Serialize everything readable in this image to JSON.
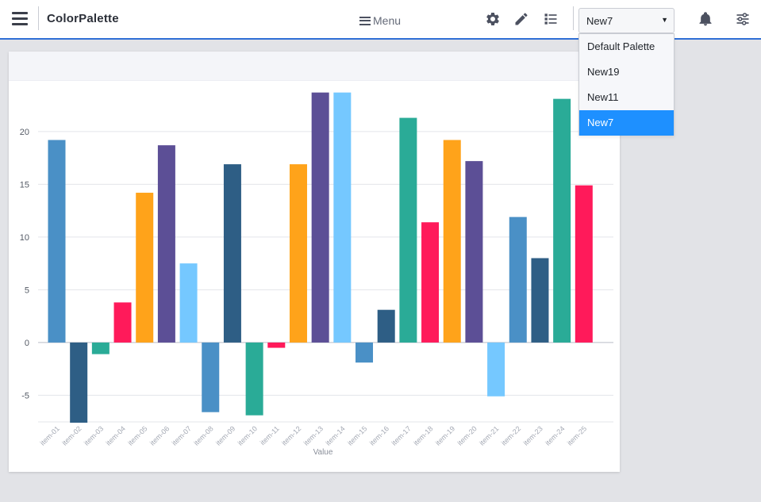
{
  "app": {
    "title": "ColorPalette"
  },
  "toolbar": {
    "menu_label": "Menu",
    "icons": [
      "hamburger-icon",
      "gear-icon",
      "pencil-icon",
      "list-icon",
      "bell-icon",
      "sliders-icon"
    ]
  },
  "palette_select": {
    "value": "New7",
    "options": [
      "Default Palette",
      "New19",
      "New11",
      "New7"
    ]
  },
  "chart_data": {
    "type": "bar",
    "categories": [
      "item-01",
      "item-02",
      "item-03",
      "item-04",
      "item-05",
      "item-06",
      "item-07",
      "item-08",
      "item-09",
      "item-10",
      "item-11",
      "item-12",
      "item-13",
      "item-14",
      "item-15",
      "item-16",
      "item-17",
      "item-18",
      "item-19",
      "item-20",
      "item-21",
      "item-22",
      "item-23",
      "item-24",
      "item-25"
    ],
    "values": [
      19.2,
      -7.6,
      -1.1,
      3.8,
      14.2,
      18.7,
      7.5,
      -6.6,
      16.9,
      -6.9,
      -0.5,
      16.9,
      23.7,
      23.7,
      -1.9,
      3.1,
      21.3,
      11.4,
      19.2,
      17.2,
      -5.1,
      11.9,
      8.0,
      23.1,
      14.9
    ],
    "colors": [
      "#4a90c6",
      "#2e5e85",
      "#2aab97",
      "#ff1a5a",
      "#ffa31a",
      "#5c4f96",
      "#75c8ff"
    ],
    "xlabel": "Value",
    "ylabel": "",
    "yticks": [
      -5,
      0,
      5,
      10,
      15,
      20
    ],
    "ylim": [
      -7.6,
      23.9
    ],
    "grid": true
  }
}
